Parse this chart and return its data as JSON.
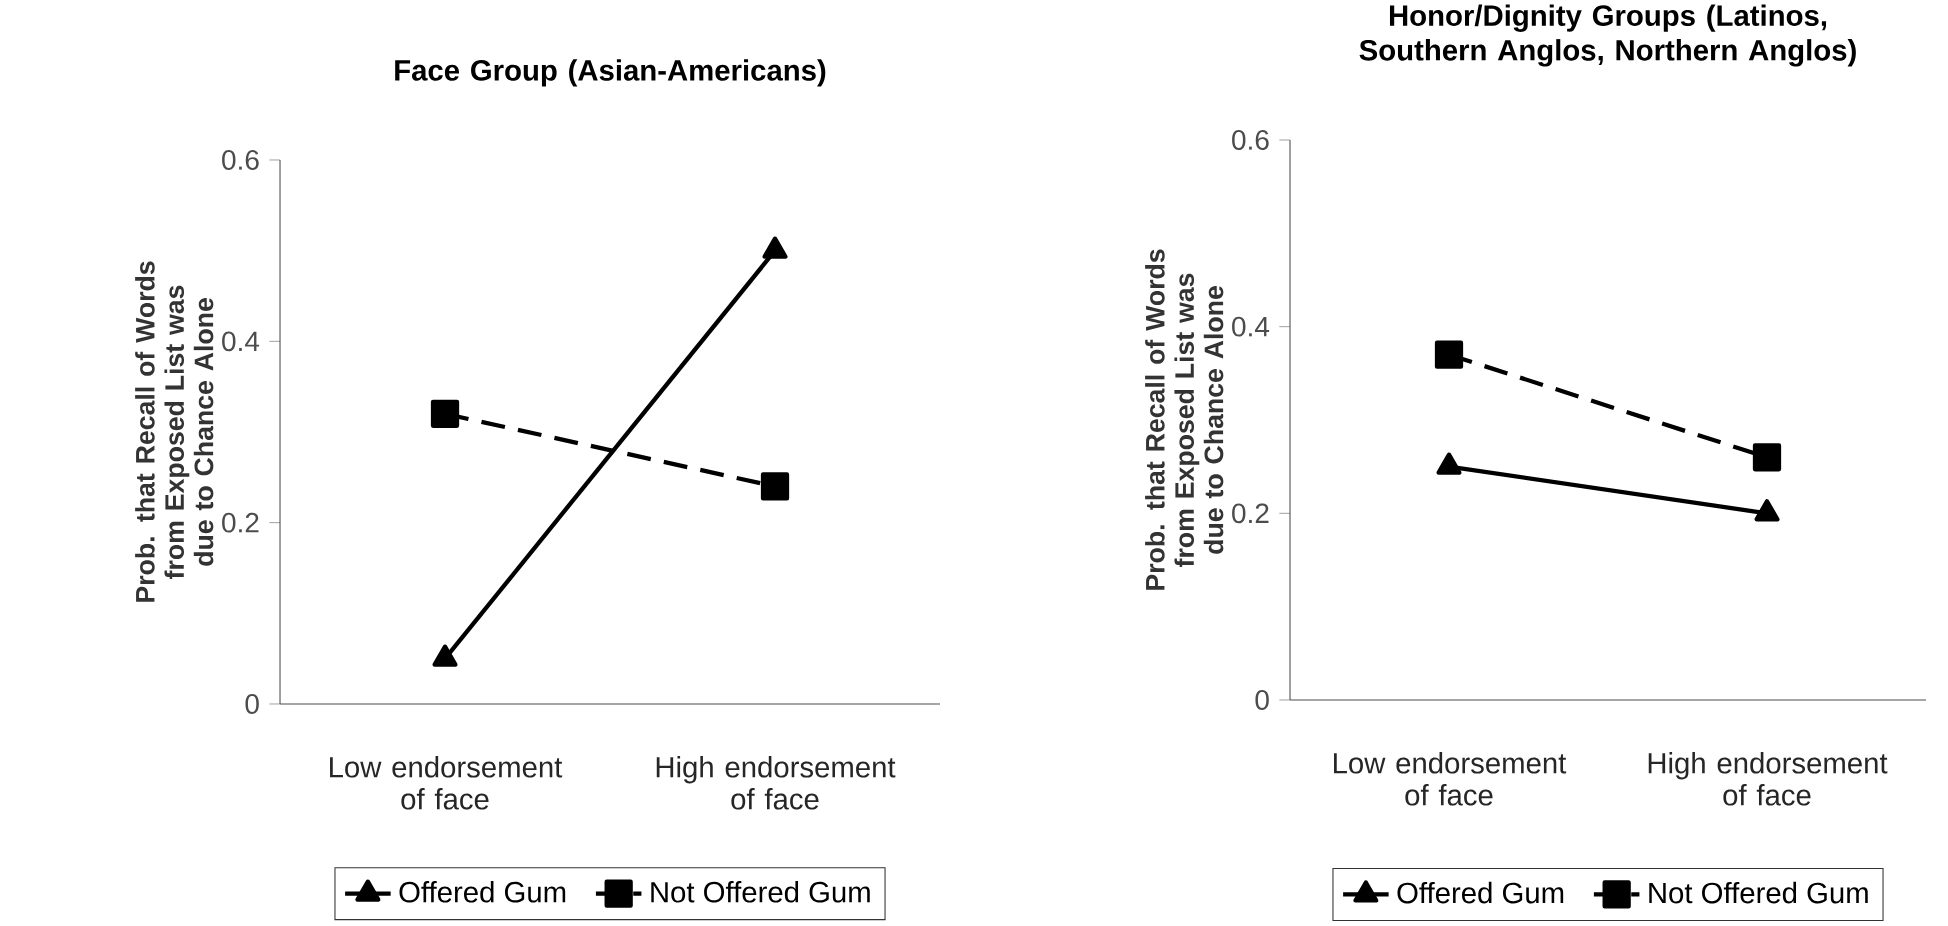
{
  "chart_data": [
    {
      "type": "line",
      "title": "Face Group (Asian-Americans)",
      "ylabel": "Prob. that Recall of Words from Exposed List was due to Chance Alone",
      "categories": [
        "Low endorsement of face",
        "High endorsement of face"
      ],
      "ylim": [
        0,
        0.6
      ],
      "yticks": [
        0,
        0.2,
        0.4,
        0.6
      ],
      "grid": false,
      "legend": "bottom",
      "series": [
        {
          "name": "Offered Gum",
          "color": "#000000",
          "values": [
            0.05,
            0.5
          ],
          "marker": "triangle",
          "line_style": "solid"
        },
        {
          "name": "Not Offered Gum",
          "color": "#000000",
          "values": [
            0.32,
            0.24
          ],
          "marker": "square",
          "line_style": "dashed"
        }
      ]
    },
    {
      "type": "line",
      "title": "Honor/Dignity Groups (Latinos, Southern Anglos, Northern Anglos)",
      "ylabel": "Prob. that Recall of Words from Exposed List was due to Chance Alone",
      "categories": [
        "Low endorsement of face",
        "High endorsement of face"
      ],
      "ylim": [
        0,
        0.6
      ],
      "yticks": [
        0,
        0.2,
        0.4,
        0.6
      ],
      "grid": false,
      "legend": "bottom",
      "series": [
        {
          "name": "Offered Gum",
          "color": "#000000",
          "values": [
            0.25,
            0.2
          ],
          "marker": "triangle",
          "line_style": "solid"
        },
        {
          "name": "Not Offered Gum",
          "color": "#000000",
          "values": [
            0.37,
            0.26
          ],
          "marker": "square",
          "line_style": "dashed"
        }
      ]
    }
  ]
}
